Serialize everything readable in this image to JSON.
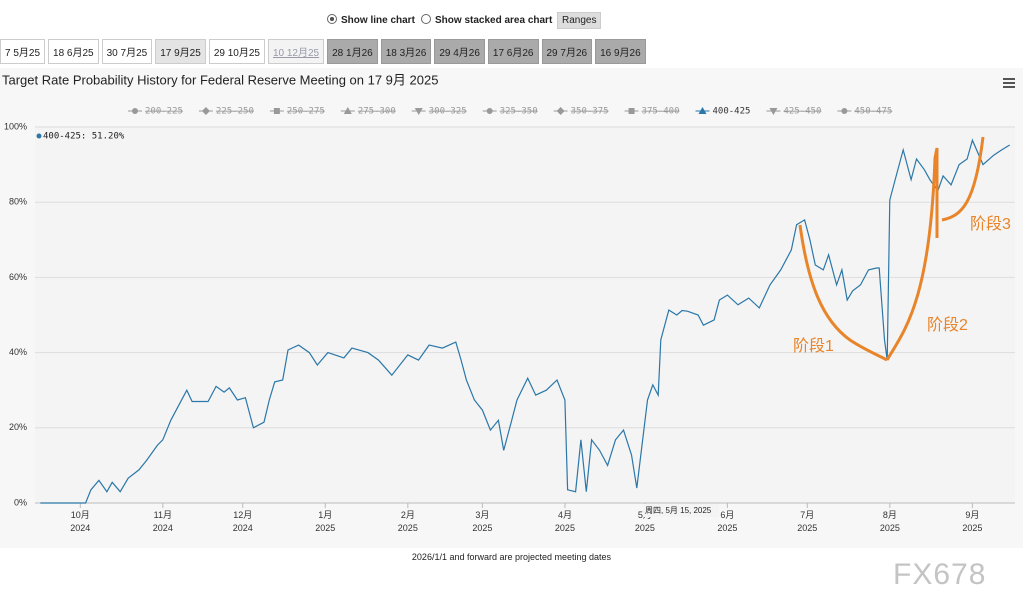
{
  "controls": {
    "line": "Show line chart",
    "stacked": "Show stacked area chart",
    "ranges": "Ranges"
  },
  "tabs": [
    "7 5月25",
    "18 6月25",
    "30 7月25",
    "17 9月25",
    "29 10月25",
    "10 12月25",
    "28 1月26",
    "18 3月26",
    "29 4月26",
    "17 6月26",
    "29 7月26",
    "16 9月26"
  ],
  "chart_data": {
    "type": "line",
    "title": "Target Rate Probability History for Federal Reserve Meeting on 17 9月 2025",
    "legend": [
      "200-225",
      "225-250",
      "250-275",
      "275-300",
      "300-325",
      "325-350",
      "350-375",
      "375-400",
      "400-425",
      "425-450",
      "450-475"
    ],
    "x": [
      "2024-09-16",
      "2024-10-03",
      "2024-10-05",
      "2024-10-08",
      "2024-10-11",
      "2024-10-13",
      "2024-10-16",
      "2024-10-19",
      "2024-10-23",
      "2024-10-26",
      "2024-10-30",
      "2024-11-01",
      "2024-11-04",
      "2024-11-07",
      "2024-11-10",
      "2024-11-12",
      "2024-11-18",
      "2024-11-21",
      "2024-11-24",
      "2024-11-26",
      "2024-11-29",
      "2024-12-02",
      "2024-12-05",
      "2024-12-09",
      "2024-12-11",
      "2024-12-13",
      "2024-12-16",
      "2024-12-18",
      "2024-12-22",
      "2024-12-26",
      "2024-12-29",
      "2025-01-02",
      "2025-01-08",
      "2025-01-11",
      "2025-01-17",
      "2025-01-21",
      "2025-01-26",
      "2025-02-01",
      "2025-02-05",
      "2025-02-09",
      "2025-02-14",
      "2025-02-19",
      "2025-02-21",
      "2025-02-23",
      "2025-02-26",
      "2025-03-01",
      "2025-03-04",
      "2025-03-07",
      "2025-03-09",
      "2025-03-12",
      "2025-03-14",
      "2025-03-18",
      "2025-03-21",
      "2025-03-25",
      "2025-03-29",
      "2025-04-01",
      "2025-04-02",
      "2025-04-05",
      "2025-04-07",
      "2025-04-09",
      "2025-04-11",
      "2025-04-14",
      "2025-04-17",
      "2025-04-20",
      "2025-04-23",
      "2025-04-26",
      "2025-04-28",
      "2025-05-02",
      "2025-05-04",
      "2025-05-06",
      "2025-05-07",
      "2025-05-10",
      "2025-05-13",
      "2025-05-15",
      "2025-05-17",
      "2025-05-21",
      "2025-05-23",
      "2025-05-27",
      "2025-05-29",
      "2025-06-01",
      "2025-06-05",
      "2025-06-09",
      "2025-06-13",
      "2025-06-17",
      "2025-06-21",
      "2025-06-25",
      "2025-06-27",
      "2025-06-30",
      "2025-07-02",
      "2025-07-04",
      "2025-07-07",
      "2025-07-09",
      "2025-07-12",
      "2025-07-14",
      "2025-07-16",
      "2025-07-18",
      "2025-07-21",
      "2025-07-24",
      "2025-07-27",
      "2025-07-28",
      "2025-07-30",
      "2025-07-31",
      "2025-08-01",
      "2025-08-04",
      "2025-08-06",
      "2025-08-09",
      "2025-08-11",
      "2025-08-14",
      "2025-08-16",
      "2025-08-19",
      "2025-08-21",
      "2025-08-24",
      "2025-08-27",
      "2025-08-30",
      "2025-09-01",
      "2025-09-05",
      "2025-09-09",
      "2025-09-12",
      "2025-09-15"
    ],
    "series": [
      {
        "name": "400-425",
        "color": "#2b77a8",
        "values": [
          0,
          0,
          3.5,
          6,
          3,
          5.5,
          3,
          6.6,
          8.8,
          11.4,
          15.4,
          16.8,
          22,
          26,
          30,
          27,
          27,
          31,
          29.5,
          30.6,
          27.4,
          28,
          20,
          21.5,
          27.4,
          32.2,
          32.7,
          40.7,
          42,
          40,
          36.7,
          40,
          38.6,
          41.2,
          40,
          38,
          34,
          39.4,
          38,
          42,
          41.2,
          42.8,
          38,
          32.7,
          27.4,
          24.7,
          19.4,
          22,
          14,
          22,
          27.4,
          33.2,
          28.7,
          30,
          32.7,
          27.4,
          3.5,
          3,
          16.8,
          3,
          16.8,
          14,
          10,
          16.8,
          19.4,
          12.8,
          4,
          27.4,
          31.4,
          28.7,
          43.4,
          51.3,
          50,
          51.2,
          51,
          50,
          47.3,
          48.7,
          54,
          55.3,
          52.7,
          54.5,
          51.9,
          58,
          62,
          67.3,
          74,
          75.3,
          70,
          63.3,
          62,
          66,
          58,
          62,
          54,
          56.4,
          58,
          62,
          62.5,
          62.5,
          43.4,
          38,
          80.6,
          88.6,
          93.9,
          86,
          91.5,
          88.6,
          86,
          83,
          87,
          84.6,
          90,
          91.5,
          96.5,
          90,
          92.5,
          93.9,
          95.2
        ]
      }
    ],
    "xlim": [
      "2024-09-14",
      "2025-09-17"
    ],
    "xticks": [
      {
        "value": "2024-10-01",
        "label": "10月\n2024"
      },
      {
        "value": "2024-11-01",
        "label": "11月\n2024"
      },
      {
        "value": "2024-12-01",
        "label": "12月\n2024"
      },
      {
        "value": "2025-01-01",
        "label": "1月\n2025"
      },
      {
        "value": "2025-02-01",
        "label": "2月\n2025"
      },
      {
        "value": "2025-03-01",
        "label": "3月\n2025"
      },
      {
        "value": "2025-04-01",
        "label": "4月\n2025"
      },
      {
        "value": "2025-05-01",
        "label": "5月\n2025"
      },
      {
        "value": "2025-06-01",
        "label": "6月\n2025"
      },
      {
        "value": "2025-07-01",
        "label": "7月\n2025"
      },
      {
        "value": "2025-08-01",
        "label": "8月\n2025"
      },
      {
        "value": "2025-09-01",
        "label": "9月\n2025"
      }
    ],
    "ylim": [
      0,
      100
    ],
    "yticks": [
      {
        "value": 0,
        "label": "0%"
      },
      {
        "value": 20,
        "label": "20%"
      },
      {
        "value": 40,
        "label": "40%"
      },
      {
        "value": 60,
        "label": "60%"
      },
      {
        "value": 80,
        "label": "80%"
      },
      {
        "value": 100,
        "label": "100%"
      }
    ],
    "grid": true,
    "tooltip": "400-425: 51.20%",
    "crosshair_label": "周四, 5月 15, 2025",
    "annotations": [
      "阶段1",
      "阶段2",
      "阶段3"
    ],
    "annotation_color": "#e8852a"
  },
  "footer": "2026/1/1 and forward are projected meeting dates",
  "watermark": "FX678"
}
